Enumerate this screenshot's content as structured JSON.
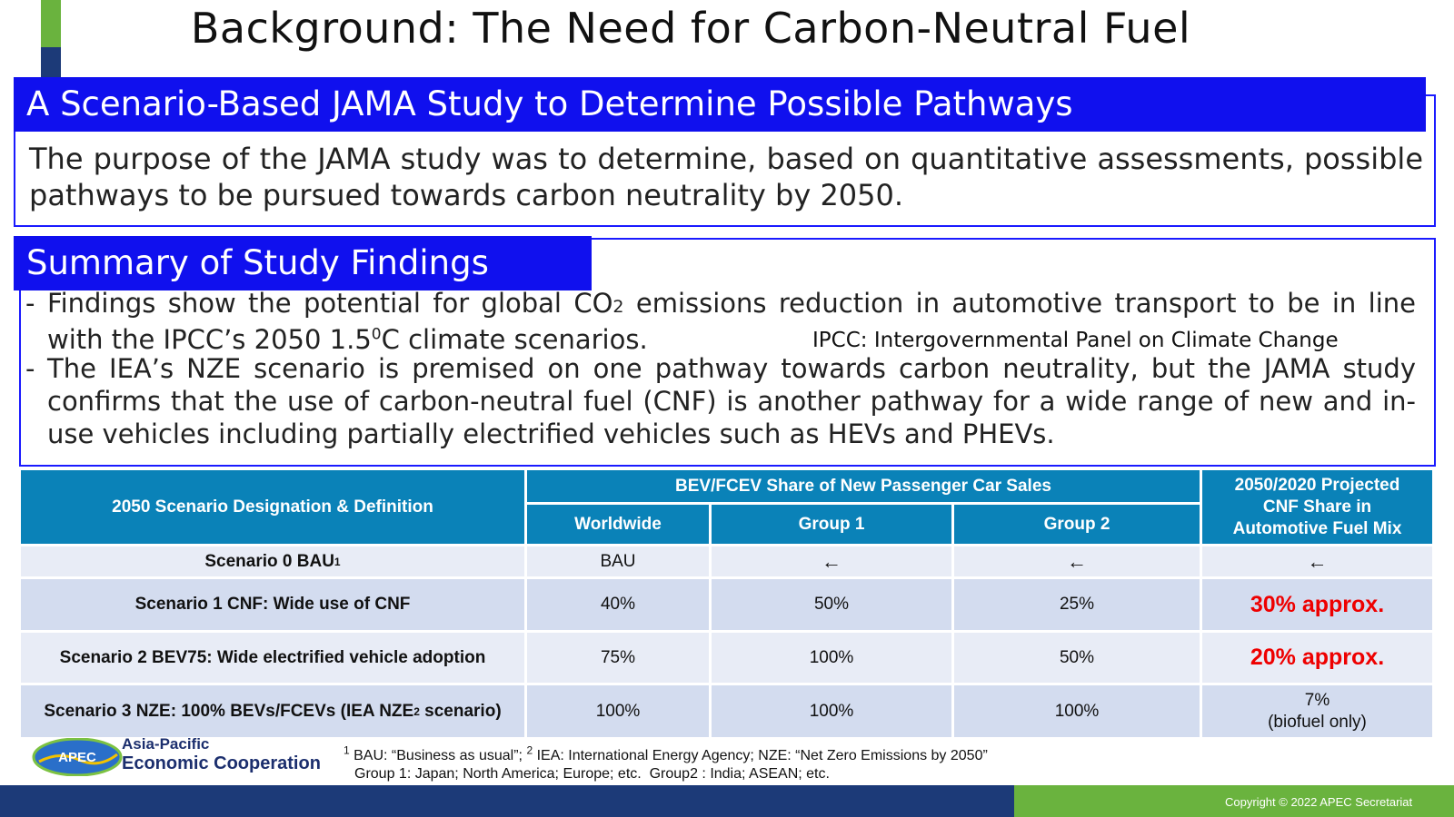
{
  "title": "Background: The Need for Carbon-Neutral Fuel",
  "section1": {
    "header": "A Scenario-Based JAMA Study to Determine Possible Pathways",
    "text": "The purpose of the JAMA study was to determine, based on quantitative assessments, possible pathways to be pursued towards carbon neutrality by 2050."
  },
  "section2": {
    "header": "Summary of Study Findings",
    "bullet_dash": "-",
    "bullet1": {
      "part1": "Findings show the potential for global CO",
      "sub": "2",
      "part2": " emissions reduction in automotive transport to be in line with the IPCC’s 2050 1.5",
      "sup": "0",
      "part3": "C climate scenarios."
    },
    "ipcc_note": "IPCC: Intergovernmental Panel on Climate Change",
    "bullet2": "The IEA’s NZE scenario is premised on one pathway towards carbon neutrality, but the JAMA study confirms that the use of carbon-neutral fuel (CNF) is another pathway for a wide range of new and in-use vehicles including partially electrified vehicles such as HEVs and PHEVs."
  },
  "table": {
    "header_col1": "2050 Scenario Designation & Definition",
    "header_group": "BEV/FCEV Share of New Passenger Car Sales",
    "header_worldwide": "Worldwide",
    "header_group1": "Group 1",
    "header_group2": "Group 2",
    "header_cnf": "2050/2020 Projected CNF Share in Automotive Fuel Mix",
    "rows": [
      {
        "scenario": "Scenario 0 BAU",
        "sup": "1",
        "suffix": "",
        "worldwide": "BAU",
        "group1": "←",
        "group2": "←",
        "cnf": "←",
        "cnf2": ""
      },
      {
        "scenario": "Scenario 1 CNF: Wide use of CNF",
        "sup": "",
        "suffix": "",
        "worldwide": "40%",
        "group1": "50%",
        "group2": "25%",
        "cnf": "30% approx.",
        "cnf2": ""
      },
      {
        "scenario": "Scenario 2 BEV75: Wide electrified vehicle adoption",
        "sup": "",
        "suffix": "",
        "worldwide": "75%",
        "group1": "100%",
        "group2": "50%",
        "cnf": "20% approx.",
        "cnf2": ""
      },
      {
        "scenario": "Scenario 3 NZE: 100% BEVs/FCEVs (IEA NZE",
        "sup": "2",
        "suffix": " scenario)",
        "worldwide": "100%",
        "group1": "100%",
        "group2": "100%",
        "cnf": "7%",
        "cnf2": "(biofuel only)"
      }
    ]
  },
  "logo": {
    "badge": "APEC",
    "line1": "Asia-Pacific",
    "line2": "Economic Cooperation"
  },
  "footnotes": {
    "line1_sup1": "1",
    "line1_a": " BAU: “Business as usual”; ",
    "line1_sup2": "2",
    "line1_b": " IEA: International Energy Agency; NZE: “Net Zero Emissions by 2050”",
    "line2": "Group 1: Japan; North America; Europe; etc.  Group2 : India; ASEAN; etc."
  },
  "copyright": "Copyright © 2022 APEC Secretariat",
  "colors": {
    "header_blue": "#1010ee",
    "table_header": "#0a82b8",
    "highlight_red": "#ee0000",
    "footer_navy": "#1c3a78",
    "footer_green": "#6ab33e"
  }
}
